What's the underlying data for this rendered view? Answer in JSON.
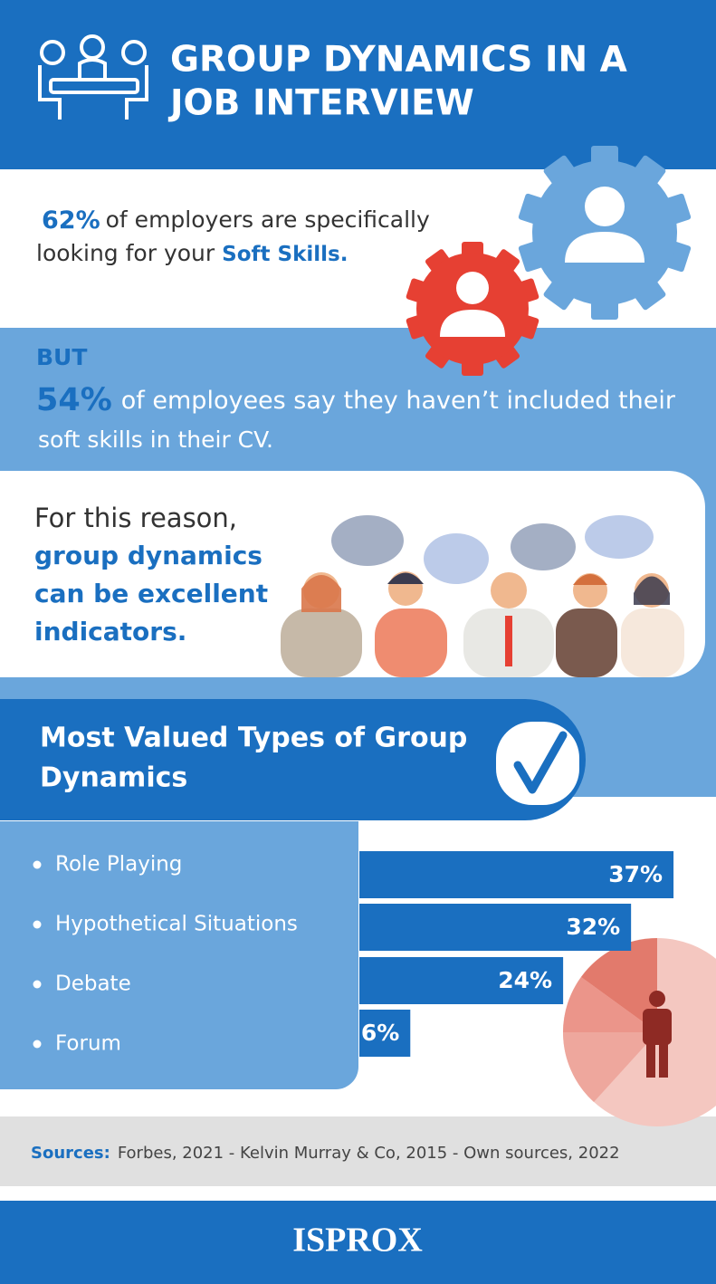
{
  "header": {
    "title_line1": "GROUP DYNAMICS IN A",
    "title_line2": "JOB INTERVIEW"
  },
  "stat_employers": {
    "figure": "62%",
    "text_line1": "of employers are specifically",
    "text_line2": "looking for your",
    "highlight": "Soft Skills."
  },
  "stat_employees": {
    "lead": "BUT",
    "figure": "54%",
    "text_line1": "of employees say they haven’t included their",
    "text_line2": "soft skills in their CV."
  },
  "reason": {
    "line1": "For this reason,",
    "line2": "group dynamics",
    "line3": "can be excellent",
    "line4": "indicators."
  },
  "chart_data": {
    "type": "bar",
    "title_line1": "Most Valued Types of Group",
    "title_line2": "Dynamics",
    "categories": [
      "Role Playing",
      "Hypothetical Situations",
      "Debate",
      "Forum"
    ],
    "values": [
      37,
      32,
      24,
      6
    ],
    "value_labels": [
      "37%",
      "32%",
      "24%",
      "6%"
    ],
    "color": "#1a6fc0"
  },
  "sources": {
    "label": "Sources:",
    "text": "Forbes, 2021 - Kelvin Murray & Co, 2015 - Own sources, 2022"
  },
  "footer": {
    "logo": "ISPROX"
  }
}
